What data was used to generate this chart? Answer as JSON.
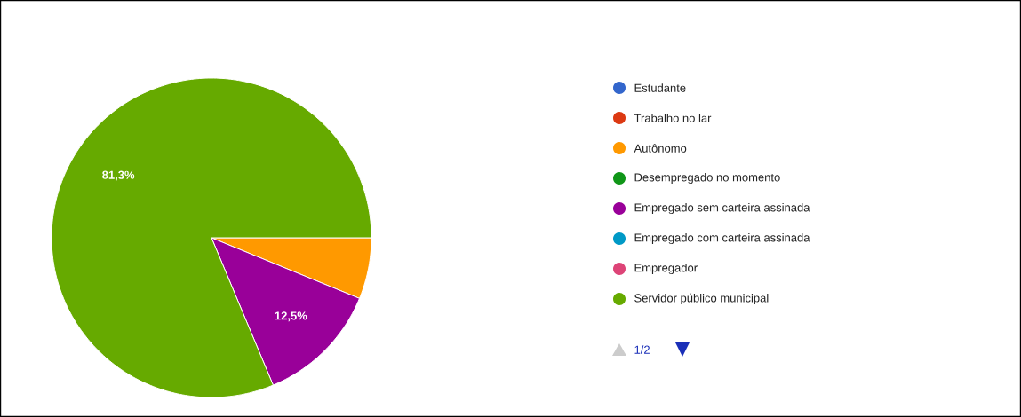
{
  "chart_data": {
    "type": "pie",
    "categories": [
      "Estudante",
      "Trabalho no lar",
      "Autônomo",
      "Desempregado no momento",
      "Empregado sem carteira assinada",
      "Empregado com carteira assinada",
      "Empregador",
      "Servidor público municipal"
    ],
    "values": [
      0,
      0,
      6.2,
      0,
      12.5,
      0,
      0,
      81.3
    ],
    "colors": [
      "#3366cc",
      "#dc3912",
      "#ff9900",
      "#109618",
      "#990099",
      "#0099c6",
      "#dd4477",
      "#66aa00"
    ],
    "value_labels": [
      null,
      null,
      null,
      null,
      "12,5%",
      null,
      null,
      "81,3%"
    ],
    "legend": "right",
    "annotations": [
      "1/2"
    ]
  }
}
